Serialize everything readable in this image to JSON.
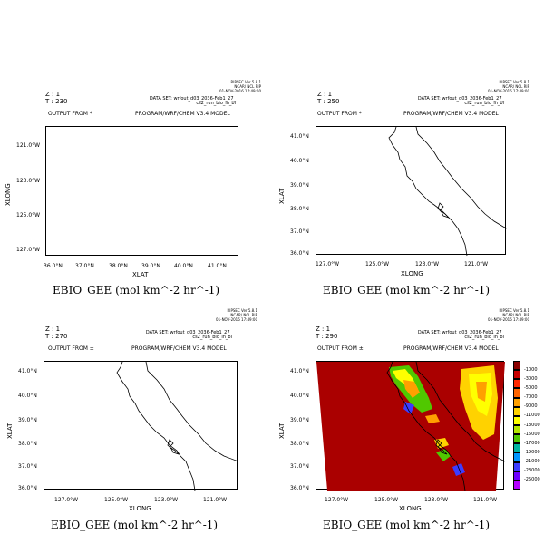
{
  "panels": [
    {
      "z": "Z : 1",
      "t": "T : 230",
      "output": "OUTPUT FROM *",
      "dataset": "DATA SET: wrfout_d03_2036-Feb1_27_",
      "dataset2": "cs2_run_bio_in_bi",
      "program": "PROGRAM/WRF/CHEM V3.4 MODEL",
      "credit1": "RIPSEC Ver 5.8.1",
      "credit2": "NCAR/ NCL RIP",
      "credit3": "01-NOV-2016 17:49:00",
      "xlabel": "XLAT",
      "ylabel": "XLONG",
      "xticks": [
        "36.0°N",
        "37.0°N",
        "38.0°N",
        "39.0°N",
        "40.0°N",
        "41.0°N"
      ],
      "yticks": [
        "121.0°W",
        "123.0°W",
        "125.0°W",
        "127.0°W"
      ],
      "title": "EBIO_GEE (mol km^-2 hr^-1)"
    },
    {
      "z": "Z : 1",
      "t": "T : 250",
      "output": "OUTPUT FROM *",
      "dataset": "DATA SET: wrfout_d03_2036-Feb1_27_",
      "dataset2": "cs2_run_bio_in_bi",
      "program": "PROGRAM/WRF/CHEM V3.4 MODEL",
      "credit1": "RIPSEC Ver 5.8.1",
      "credit2": "NCAR/ NCL RIP",
      "credit3": "01-NOV-2016 17:49:00",
      "xlabel": "XLONG",
      "ylabel": "XLAT",
      "xticks": [
        "127.0°W",
        "125.0°W",
        "123.0°W",
        "121.0°W"
      ],
      "yticks": [
        "41.0°N",
        "40.0°N",
        "39.0°N",
        "38.0°N",
        "37.0°N",
        "36.0°N"
      ],
      "title": "EBIO_GEE (mol km^-2 hr^-1)"
    },
    {
      "z": "Z : 1",
      "t": "T : 270",
      "output": "OUTPUT FROM ±",
      "dataset": "DATA SET: wrfout_d03_2036-Feb1_27_",
      "dataset2": "cs2_run_bio_in_bi",
      "program": "PROGRAM/WRF/CHEM V3.4 MODEL",
      "credit1": "RIPSEC Ver 5.8.1",
      "credit2": "NCAR/ NCL RIP",
      "credit3": "01-NOV-2016 17:49:00",
      "xlabel": "XLONG",
      "ylabel": "XLAT",
      "xticks": [
        "127.0°W",
        "125.0°W",
        "123.0°W",
        "121.0°W"
      ],
      "yticks": [
        "41.0°N",
        "40.0°N",
        "39.0°N",
        "38.0°N",
        "37.0°N",
        "36.0°N"
      ],
      "title": "EBIO_GEE (mol km^-2 hr^-1)"
    },
    {
      "z": "Z : 1",
      "t": "T : 290",
      "output": "OUTPUT FROM ±",
      "dataset": "DATA SET: wrfout_d03_2036-Feb1_27_",
      "dataset2": "cs2_run_bio_in_bi",
      "program": "PROGRAM/WRF/CHEM V3.4 MODEL",
      "credit1": "RIPSEC Ver 5.8.1",
      "credit2": "NCAR/ NCL RIP",
      "credit3": "01-NOV-2016 17:49:00",
      "xlabel": "XLONG",
      "ylabel": "XLAT",
      "xticks": [
        "127.0°W",
        "125.0°W",
        "123.0°W",
        "121.0°W"
      ],
      "yticks": [
        "41.0°N",
        "40.0°N",
        "39.0°N",
        "38.0°N",
        "37.0°N",
        "36.0°N"
      ],
      "title": "EBIO_GEE (mol km^-2 hr^-1)",
      "colorbar": {
        "labels": [
          "-1000",
          "-3000",
          "-5000",
          "-7000",
          "-9000",
          "-11000",
          "-13000",
          "-15000",
          "-17000",
          "-19000",
          "-21000",
          "-23000",
          "-25000"
        ],
        "colors": [
          "#8b0000",
          "#c80000",
          "#ff2800",
          "#ff6400",
          "#ffa000",
          "#ffd200",
          "#ffff00",
          "#b4e600",
          "#50c800",
          "#00b4a0",
          "#0096ff",
          "#3c3cff",
          "#6e00ff",
          "#b400ff"
        ]
      },
      "fill_color": "#aa0000"
    }
  ]
}
